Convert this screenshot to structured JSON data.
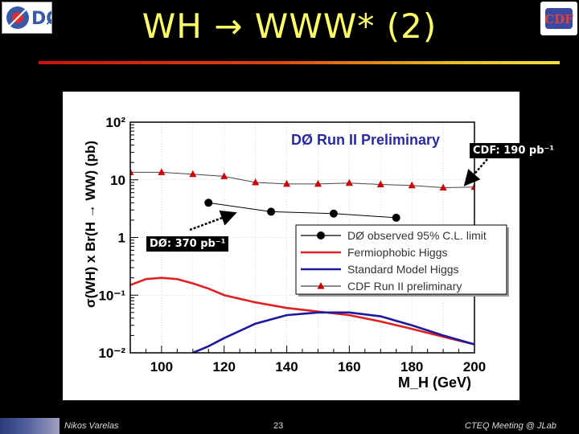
{
  "slide": {
    "title": "WH → WWW* (2)",
    "footer_left": "Nikos Varelas",
    "page_number": "23",
    "footer_right": "CTEQ Meeting @ JLab"
  },
  "logos": {
    "left": "DØ",
    "right": "CDF"
  },
  "callouts": {
    "d0": "DØ: 370 pb⁻¹",
    "cdf": "CDF: 190 pb⁻¹"
  },
  "chart_data": {
    "type": "line",
    "title": "DØ Run II Preliminary",
    "xlabel": "M_H (GeV)",
    "ylabel": "σ(WH) x Br(H → WW) (pb)",
    "xlim": [
      90,
      200
    ],
    "ylim": [
      0.01,
      100
    ],
    "yscale": "log",
    "grid": true,
    "legend_position": "right",
    "x_tick_labels": [
      "100",
      "120",
      "140",
      "160",
      "180",
      "200"
    ],
    "y_tick_labels": [
      "10⁻²",
      "10⁻¹",
      "1",
      "10",
      "10²"
    ],
    "series": [
      {
        "name": "DØ observed 95% C.L. limit",
        "color": "#000000",
        "marker": "circle",
        "x": [
          115,
          135,
          155,
          175
        ],
        "y": [
          4.0,
          2.8,
          2.6,
          2.2
        ]
      },
      {
        "name": "Fermiophobic Higgs",
        "color": "#e02020",
        "x": [
          90,
          95,
          100,
          105,
          110,
          115,
          120,
          130,
          140,
          150,
          160,
          170,
          180,
          190,
          200
        ],
        "y": [
          0.15,
          0.19,
          0.2,
          0.19,
          0.16,
          0.13,
          0.1,
          0.075,
          0.06,
          0.052,
          0.045,
          0.035,
          0.026,
          0.019,
          0.014
        ]
      },
      {
        "name": "Standard Model Higgs",
        "color": "#1a1aa0",
        "x": [
          110,
          115,
          120,
          130,
          140,
          150,
          160,
          170,
          180,
          190,
          200
        ],
        "y": [
          0.01,
          0.013,
          0.018,
          0.032,
          0.045,
          0.05,
          0.05,
          0.043,
          0.03,
          0.02,
          0.014
        ]
      },
      {
        "name": "CDF Run II preliminary",
        "color": "#cc0000",
        "line_color": "#444444",
        "marker": "triangle",
        "x": [
          90,
          100,
          110,
          120,
          130,
          140,
          150,
          160,
          170,
          180,
          190,
          200
        ],
        "y": [
          13.5,
          13.5,
          12.5,
          11.5,
          9.0,
          8.5,
          8.5,
          8.8,
          8.3,
          8.0,
          7.3,
          7.5
        ]
      }
    ]
  }
}
